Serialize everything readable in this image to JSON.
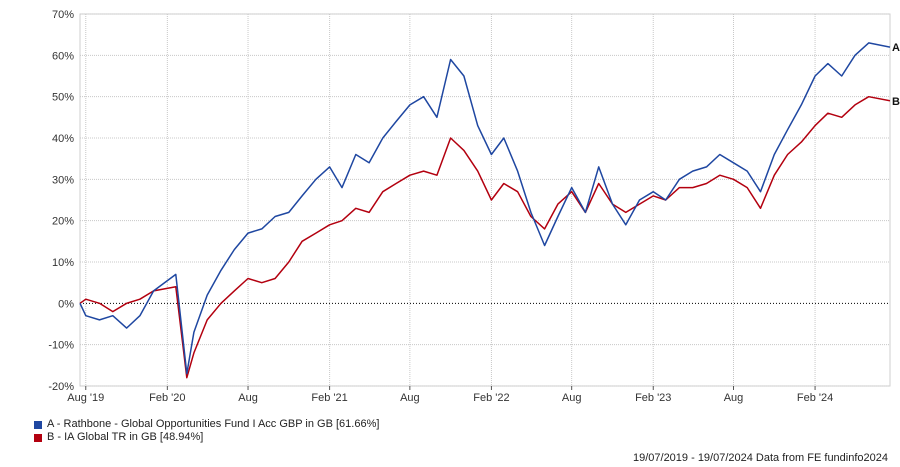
{
  "chart_data": {
    "type": "line",
    "ylim": [
      -20,
      70
    ],
    "y_ticks": [
      "70%",
      "60%",
      "50%",
      "40%",
      "30%",
      "20%",
      "10%",
      "0%",
      "-10%",
      "-20%"
    ],
    "y_tick_values": [
      70,
      60,
      50,
      40,
      30,
      20,
      10,
      0,
      -10,
      -20
    ],
    "x_range": [
      "2019-07-19",
      "2024-07-19"
    ],
    "x_ticks": [
      {
        "label": "Aug '19",
        "date": "2019-08-01"
      },
      {
        "label": "Feb '20",
        "date": "2020-02-01"
      },
      {
        "label": "Aug",
        "date": "2020-08-01"
      },
      {
        "label": "Feb '21",
        "date": "2021-02-01"
      },
      {
        "label": "Aug",
        "date": "2021-08-01"
      },
      {
        "label": "Feb '22",
        "date": "2022-02-01"
      },
      {
        "label": "Aug",
        "date": "2022-08-01"
      },
      {
        "label": "Feb '23",
        "date": "2023-02-01"
      },
      {
        "label": "Aug",
        "date": "2023-08-01"
      },
      {
        "label": "Feb '24",
        "date": "2024-02-01"
      }
    ],
    "grid": true,
    "zero_line": "dotted",
    "legend_position": "bottom-left",
    "series": [
      {
        "name": "A - Rathbone - Global Opportunities Fund I Acc GBP in GB [61.66%]",
        "end_label": "A",
        "color": "#1f47a1",
        "points": [
          [
            "2019-07-19",
            0
          ],
          [
            "2019-08-01",
            -3
          ],
          [
            "2019-09-01",
            -4
          ],
          [
            "2019-10-01",
            -3
          ],
          [
            "2019-11-01",
            -6
          ],
          [
            "2019-12-01",
            -3
          ],
          [
            "2020-01-01",
            3
          ],
          [
            "2020-02-20",
            7
          ],
          [
            "2020-03-16",
            -17
          ],
          [
            "2020-04-01",
            -7
          ],
          [
            "2020-05-01",
            2
          ],
          [
            "2020-06-01",
            8
          ],
          [
            "2020-07-01",
            13
          ],
          [
            "2020-08-01",
            17
          ],
          [
            "2020-09-01",
            18
          ],
          [
            "2020-10-01",
            21
          ],
          [
            "2020-11-01",
            22
          ],
          [
            "2020-12-01",
            26
          ],
          [
            "2021-01-01",
            30
          ],
          [
            "2021-02-01",
            33
          ],
          [
            "2021-03-01",
            28
          ],
          [
            "2021-04-01",
            36
          ],
          [
            "2021-05-01",
            34
          ],
          [
            "2021-06-01",
            40
          ],
          [
            "2021-07-01",
            44
          ],
          [
            "2021-08-01",
            48
          ],
          [
            "2021-09-01",
            50
          ],
          [
            "2021-10-01",
            45
          ],
          [
            "2021-11-01",
            59
          ],
          [
            "2021-12-01",
            55
          ],
          [
            "2022-01-01",
            43
          ],
          [
            "2022-02-01",
            36
          ],
          [
            "2022-03-01",
            40
          ],
          [
            "2022-04-01",
            32
          ],
          [
            "2022-05-01",
            22
          ],
          [
            "2022-06-01",
            14
          ],
          [
            "2022-07-01",
            21
          ],
          [
            "2022-08-01",
            28
          ],
          [
            "2022-09-01",
            22
          ],
          [
            "2022-10-01",
            33
          ],
          [
            "2022-11-01",
            24
          ],
          [
            "2022-12-01",
            19
          ],
          [
            "2023-01-01",
            25
          ],
          [
            "2023-02-01",
            27
          ],
          [
            "2023-03-01",
            25
          ],
          [
            "2023-04-01",
            30
          ],
          [
            "2023-05-01",
            32
          ],
          [
            "2023-06-01",
            33
          ],
          [
            "2023-07-01",
            36
          ],
          [
            "2023-08-01",
            34
          ],
          [
            "2023-09-01",
            32
          ],
          [
            "2023-10-01",
            27
          ],
          [
            "2023-11-01",
            36
          ],
          [
            "2023-12-01",
            42
          ],
          [
            "2024-01-01",
            48
          ],
          [
            "2024-02-01",
            55
          ],
          [
            "2024-03-01",
            58
          ],
          [
            "2024-04-01",
            55
          ],
          [
            "2024-05-01",
            60
          ],
          [
            "2024-06-01",
            63
          ],
          [
            "2024-07-19",
            62
          ]
        ]
      },
      {
        "name": "B - IA Global TR in GB [48.94%]",
        "end_label": "B",
        "color": "#b3000f",
        "points": [
          [
            "2019-07-19",
            0
          ],
          [
            "2019-08-01",
            1
          ],
          [
            "2019-09-01",
            0
          ],
          [
            "2019-10-01",
            -2
          ],
          [
            "2019-11-01",
            0
          ],
          [
            "2019-12-01",
            1
          ],
          [
            "2020-01-01",
            3
          ],
          [
            "2020-02-20",
            4
          ],
          [
            "2020-03-16",
            -18
          ],
          [
            "2020-04-01",
            -12
          ],
          [
            "2020-05-01",
            -4
          ],
          [
            "2020-06-01",
            0
          ],
          [
            "2020-07-01",
            3
          ],
          [
            "2020-08-01",
            6
          ],
          [
            "2020-09-01",
            5
          ],
          [
            "2020-10-01",
            6
          ],
          [
            "2020-11-01",
            10
          ],
          [
            "2020-12-01",
            15
          ],
          [
            "2021-01-01",
            17
          ],
          [
            "2021-02-01",
            19
          ],
          [
            "2021-03-01",
            20
          ],
          [
            "2021-04-01",
            23
          ],
          [
            "2021-05-01",
            22
          ],
          [
            "2021-06-01",
            27
          ],
          [
            "2021-07-01",
            29
          ],
          [
            "2021-08-01",
            31
          ],
          [
            "2021-09-01",
            32
          ],
          [
            "2021-10-01",
            31
          ],
          [
            "2021-11-01",
            40
          ],
          [
            "2021-12-01",
            37
          ],
          [
            "2022-01-01",
            32
          ],
          [
            "2022-02-01",
            25
          ],
          [
            "2022-03-01",
            29
          ],
          [
            "2022-04-01",
            27
          ],
          [
            "2022-05-01",
            21
          ],
          [
            "2022-06-01",
            18
          ],
          [
            "2022-07-01",
            24
          ],
          [
            "2022-08-01",
            27
          ],
          [
            "2022-09-01",
            22
          ],
          [
            "2022-10-01",
            29
          ],
          [
            "2022-11-01",
            24
          ],
          [
            "2022-12-01",
            22
          ],
          [
            "2023-01-01",
            24
          ],
          [
            "2023-02-01",
            26
          ],
          [
            "2023-03-01",
            25
          ],
          [
            "2023-04-01",
            28
          ],
          [
            "2023-05-01",
            28
          ],
          [
            "2023-06-01",
            29
          ],
          [
            "2023-07-01",
            31
          ],
          [
            "2023-08-01",
            30
          ],
          [
            "2023-09-01",
            28
          ],
          [
            "2023-10-01",
            23
          ],
          [
            "2023-11-01",
            31
          ],
          [
            "2023-12-01",
            36
          ],
          [
            "2024-01-01",
            39
          ],
          [
            "2024-02-01",
            43
          ],
          [
            "2024-03-01",
            46
          ],
          [
            "2024-04-01",
            45
          ],
          [
            "2024-05-01",
            48
          ],
          [
            "2024-06-01",
            50
          ],
          [
            "2024-07-19",
            49
          ]
        ]
      }
    ]
  },
  "legend": {
    "items": [
      {
        "label": "A - Rathbone - Global Opportunities Fund I Acc GBP in GB [61.66%]",
        "color": "#1f47a1"
      },
      {
        "label": "B - IA Global TR in GB [48.94%]",
        "color": "#b3000f"
      }
    ]
  },
  "source_note": "19/07/2019 - 19/07/2024 Data from FE fundinfo2024"
}
